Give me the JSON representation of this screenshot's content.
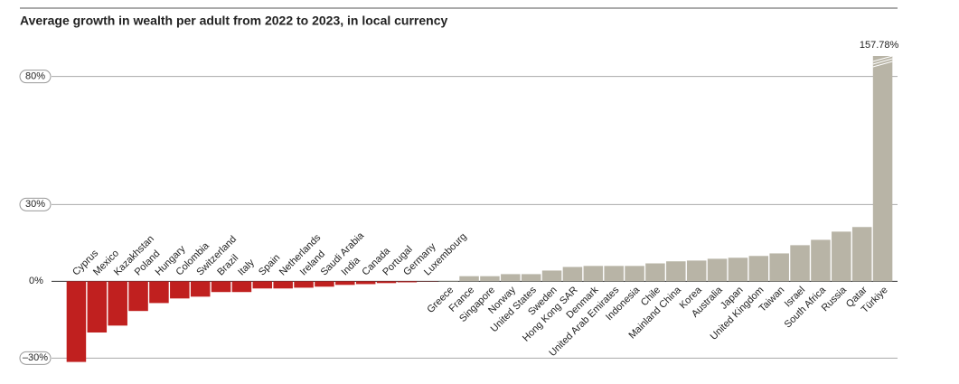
{
  "chart_data": {
    "type": "bar",
    "title": "Average growth in wealth per adult from 2022 to 2023, in local currency",
    "categories": [
      "Cyprus",
      "Mexico",
      "Kazakhstan",
      "Poland",
      "Hungary",
      "Colombia",
      "Switzerland",
      "Brazil",
      "Italy",
      "Spain",
      "Netherlands",
      "Ireland",
      "Saudi Arabia",
      "India",
      "Canada",
      "Portugal",
      "Germany",
      "Luxembourg",
      "Greece",
      "France",
      "Singapore",
      "Norway",
      "United States",
      "Sweden",
      "Hong Kong SAR",
      "Denmark",
      "United Arab Emirates",
      "Indonesia",
      "Chile",
      "Mainland China",
      "Korea",
      "Australia",
      "Japan",
      "United Kingdom",
      "Taiwan",
      "Israel",
      "South Africa",
      "Russia",
      "Qatar",
      "Türkiye"
    ],
    "values": [
      -31.5,
      -20,
      -17.3,
      -11.6,
      -8.5,
      -6.7,
      -6,
      -4.2,
      -4.2,
      -2.8,
      -2.8,
      -2.5,
      -2.1,
      -1.4,
      -1.1,
      -0.7,
      -0.4,
      -0.1,
      0.2,
      2,
      2,
      2.8,
      2.8,
      4.2,
      5.6,
      6,
      6,
      6,
      7,
      7.8,
      8.1,
      8.8,
      9.2,
      9.9,
      10.9,
      14.1,
      16.2,
      19.4,
      21.2,
      157.78
    ],
    "value_labels": [
      null,
      null,
      null,
      null,
      null,
      null,
      null,
      null,
      null,
      null,
      null,
      null,
      null,
      null,
      null,
      null,
      null,
      null,
      null,
      null,
      null,
      null,
      null,
      null,
      null,
      null,
      null,
      null,
      null,
      null,
      null,
      null,
      null,
      null,
      null,
      null,
      null,
      null,
      null,
      "157.78%"
    ],
    "negative_color": "#c0201f",
    "color": "#b8b4a6",
    "ylim": [
      -32,
      88
    ],
    "yticks": [
      {
        "value": -30,
        "label": "–30%"
      },
      {
        "value": 0,
        "label": "0%"
      },
      {
        "value": 30,
        "label": "30%"
      },
      {
        "value": 80,
        "label": "80%"
      }
    ],
    "grid": true
  }
}
